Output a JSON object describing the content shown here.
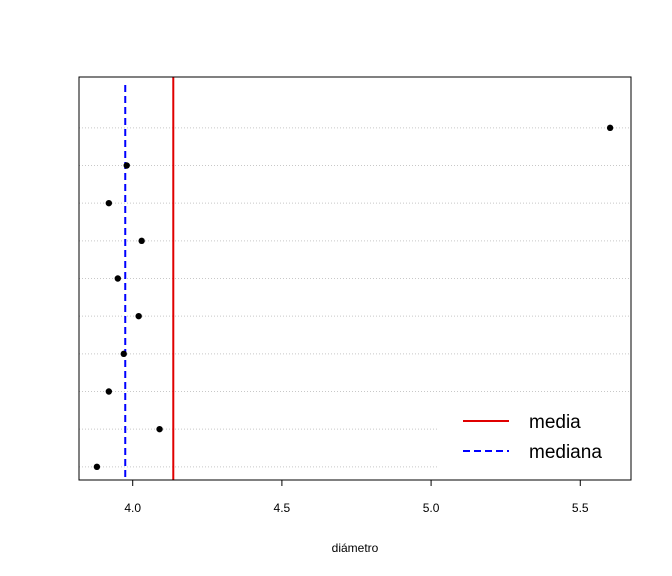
{
  "chart_data": {
    "type": "scatter",
    "title": "",
    "xlabel": "diámetro",
    "ylabel": "",
    "xlim": [
      3.82,
      5.67
    ],
    "ylim": [
      0.65,
      11.35
    ],
    "grid": true,
    "legend_position": "bottom-right",
    "x_ticks": [
      4.0,
      4.5,
      5.0,
      5.5
    ],
    "x_tick_labels": [
      "4.0",
      "4.5",
      "5.0",
      "5.5"
    ],
    "points": [
      {
        "x": 3.88,
        "y": 1
      },
      {
        "x": 4.09,
        "y": 2
      },
      {
        "x": 3.92,
        "y": 3
      },
      {
        "x": 3.97,
        "y": 4
      },
      {
        "x": 4.02,
        "y": 5
      },
      {
        "x": 3.95,
        "y": 6
      },
      {
        "x": 4.03,
        "y": 7
      },
      {
        "x": 3.92,
        "y": 8
      },
      {
        "x": 3.98,
        "y": 9
      },
      {
        "x": 5.6,
        "y": 10
      }
    ],
    "reference_lines": [
      {
        "name": "media",
        "x": 4.136,
        "color": "#e00000",
        "style": "solid"
      },
      {
        "name": "mediana",
        "x": 3.975,
        "color": "#0000ff",
        "style": "dashed"
      }
    ],
    "legend": [
      {
        "label": "media",
        "color": "#e00000",
        "style": "solid"
      },
      {
        "label": "mediana",
        "color": "#0000ff",
        "style": "dashed"
      }
    ]
  }
}
